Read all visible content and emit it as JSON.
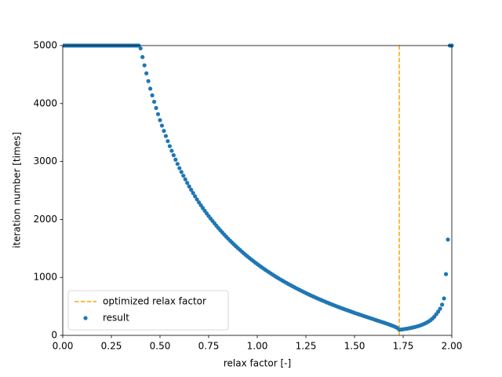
{
  "chart_data": {
    "type": "scatter",
    "xlabel": "relax factor [-]",
    "ylabel": "iteration number [times]",
    "xlim": [
      0,
      2
    ],
    "ylim": [
      0,
      5000
    ],
    "xticks": [
      {
        "value": 0,
        "label": "0.00"
      },
      {
        "value": 0.25,
        "label": "0.25"
      },
      {
        "value": 0.5,
        "label": "0.50"
      },
      {
        "value": 0.75,
        "label": "0.75"
      },
      {
        "value": 1,
        "label": "1.00"
      },
      {
        "value": 1.25,
        "label": "1.25"
      },
      {
        "value": 1.5,
        "label": "1.50"
      },
      {
        "value": 1.75,
        "label": "1.75"
      },
      {
        "value": 2,
        "label": "2.00"
      }
    ],
    "yticks": [
      0,
      1000,
      2000,
      3000,
      4000,
      5000
    ],
    "legend": "lower left",
    "vlines": [
      {
        "name": "optimized relax factor",
        "color": "#ffa500",
        "x": 1.73
      }
    ],
    "x": [
      0,
      0.01,
      0.02,
      0.03,
      0.04,
      0.05,
      0.06,
      0.07,
      0.08,
      0.09,
      0.1,
      0.11,
      0.12,
      0.13,
      0.14,
      0.15,
      0.16,
      0.17,
      0.18,
      0.19,
      0.2,
      0.21,
      0.22,
      0.23,
      0.24,
      0.25,
      0.26,
      0.27,
      0.28,
      0.29,
      0.3,
      0.31,
      0.32,
      0.33,
      0.34,
      0.35,
      0.36,
      0.37,
      0.38,
      0.39,
      0.4,
      0.41,
      0.42,
      0.43,
      0.44,
      0.45,
      0.46,
      0.47,
      0.48,
      0.49,
      0.5,
      0.51,
      0.52,
      0.53,
      0.54,
      0.55,
      0.56,
      0.57,
      0.58,
      0.59,
      0.6,
      0.61,
      0.62,
      0.63,
      0.64,
      0.65,
      0.66,
      0.67,
      0.68,
      0.69,
      0.7,
      0.71,
      0.72,
      0.73,
      0.74,
      0.75,
      0.76,
      0.77,
      0.78,
      0.79,
      0.8,
      0.81,
      0.82,
      0.83,
      0.84,
      0.85,
      0.86,
      0.87,
      0.88,
      0.89,
      0.9,
      0.91,
      0.92,
      0.93,
      0.94,
      0.95,
      0.96,
      0.97,
      0.98,
      0.99,
      1,
      1.01,
      1.02,
      1.03,
      1.04,
      1.05,
      1.06,
      1.07,
      1.08,
      1.09,
      1.1,
      1.11,
      1.12,
      1.13,
      1.14,
      1.15,
      1.16,
      1.17,
      1.18,
      1.19,
      1.2,
      1.21,
      1.22,
      1.23,
      1.24,
      1.25,
      1.26,
      1.27,
      1.28,
      1.29,
      1.3,
      1.31,
      1.32,
      1.33,
      1.34,
      1.35,
      1.36,
      1.37,
      1.38,
      1.39,
      1.4,
      1.41,
      1.42,
      1.43,
      1.44,
      1.45,
      1.46,
      1.47,
      1.48,
      1.49,
      1.5,
      1.51,
      1.52,
      1.53,
      1.54,
      1.55,
      1.56,
      1.57,
      1.58,
      1.59,
      1.6,
      1.61,
      1.62,
      1.63,
      1.64,
      1.65,
      1.66,
      1.67,
      1.68,
      1.69,
      1.7,
      1.71,
      1.72,
      1.73,
      1.74,
      1.75,
      1.76,
      1.77,
      1.78,
      1.79,
      1.8,
      1.81,
      1.82,
      1.83,
      1.84,
      1.85,
      1.86,
      1.87,
      1.88,
      1.89,
      1.9,
      1.91,
      1.92,
      1.93,
      1.94,
      1.95,
      1.96,
      1.97,
      1.98,
      1.99,
      2
    ],
    "series": [
      {
        "name": "result",
        "color": "#1f77b4",
        "values": [
          5000,
          5000,
          5000,
          5000,
          5000,
          5000,
          5000,
          5000,
          5000,
          5000,
          5000,
          5000,
          5000,
          5000,
          5000,
          5000,
          5000,
          5000,
          5000,
          5000,
          5000,
          5000,
          5000,
          5000,
          5000,
          5000,
          5000,
          5000,
          5000,
          5000,
          5000,
          5000,
          5000,
          5000,
          5000,
          5000,
          5000,
          5000,
          5000,
          5000,
          4952,
          4802,
          4659,
          4521,
          4387,
          4256,
          4141,
          4030,
          3923,
          3817,
          3713,
          3619,
          3528,
          3439,
          3351,
          3265,
          3185,
          3108,
          3032,
          2958,
          2885,
          2819,
          2755,
          2692,
          2630,
          2569,
          2512,
          2456,
          2401,
          2347,
          2294,
          2245,
          2197,
          2150,
          2104,
          2059,
          2016,
          1974,
          1933,
          1892,
          1852,
          1814,
          1777,
          1740,
          1704,
          1669,
          1635,
          1602,
          1570,
          1538,
          1507,
          1477,
          1447,
          1418,
          1389,
          1361,
          1334,
          1307,
          1281,
          1255,
          1230,
          1206,
          1182,
          1158,
          1135,
          1112,
          1090,
          1068,
          1046,
          1024,
          1003,
          983,
          963,
          943,
          924,
          905,
          886,
          868,
          850,
          832,
          814,
          797,
          780,
          763,
          746,
          730,
          714,
          698,
          682,
          667,
          652,
          637,
          622,
          608,
          594,
          580,
          566,
          552,
          538,
          525,
          512,
          499,
          486,
          473,
          461,
          449,
          437,
          425,
          413,
          401,
          388,
          377,
          366,
          355,
          343,
          331,
          320,
          309,
          298,
          287,
          275,
          264,
          253,
          242,
          231,
          220,
          209,
          197,
          185,
          173,
          160,
          146,
          129,
          97,
          101,
          106,
          111,
          116,
          122,
          129,
          136,
          144,
          153,
          163,
          174,
          187,
          202,
          218,
          238,
          261,
          288,
          322,
          365,
          410,
          460,
          530,
          637,
          1057,
          1653,
          5000,
          5000
        ]
      }
    ]
  }
}
